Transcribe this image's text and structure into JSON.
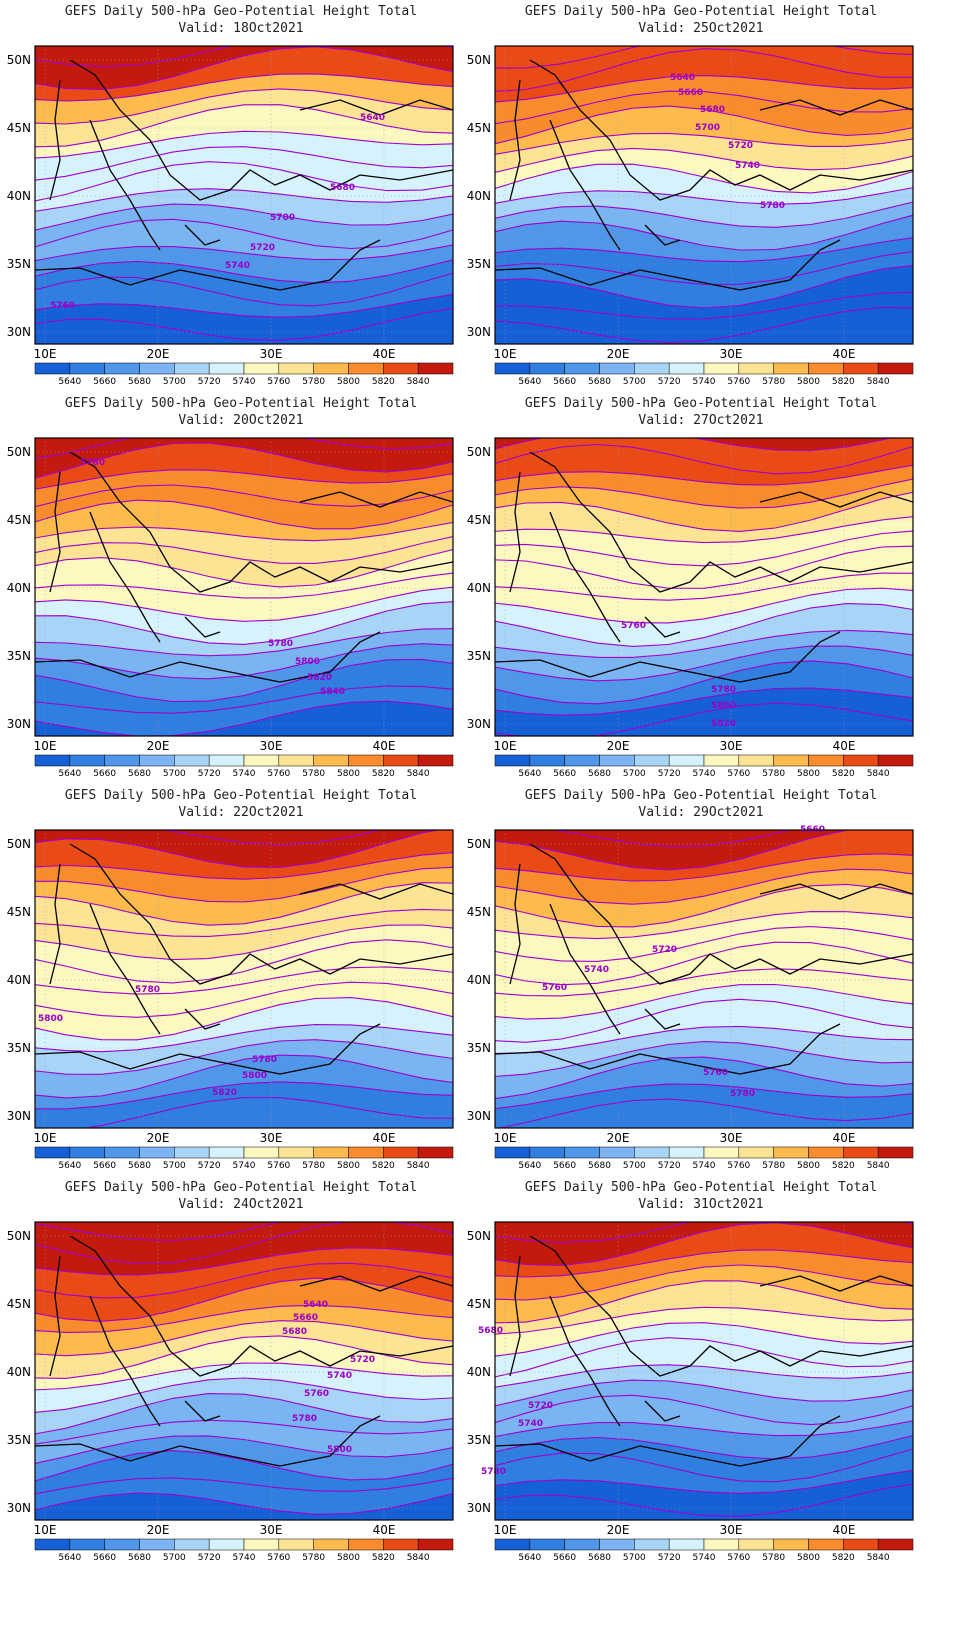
{
  "colorbar": {
    "levels": [
      "5640",
      "5660",
      "5680",
      "5700",
      "5720",
      "5740",
      "5760",
      "5780",
      "5800",
      "5820",
      "5840"
    ],
    "colors": [
      "#1560d6",
      "#2f7ee0",
      "#5097ea",
      "#7ab4f2",
      "#a7d4f7",
      "#d6f2fc",
      "#fdf7c0",
      "#fde494",
      "#fdbb4e",
      "#f88c2c",
      "#ea4a16",
      "#c41a0e"
    ]
  },
  "axes": {
    "lat_labels": [
      "50N",
      "45N",
      "40N",
      "35N",
      "30N"
    ],
    "lon_labels": [
      "10E",
      "20E",
      "30E",
      "40E"
    ]
  },
  "panels": [
    {
      "title": "GEFS Daily 500-hPa Geo-Potential Height Total",
      "valid": "Valid: 18Oct2021",
      "contour_labels": [
        "5640",
        "5680",
        "5700",
        "5720",
        "5740",
        "5760"
      ],
      "bands": [
        11,
        11,
        10,
        8,
        7,
        6,
        5,
        5,
        5,
        4,
        3,
        3,
        2,
        1,
        1,
        0,
        0
      ]
    },
    {
      "title": "GEFS Daily 500-hPa Geo-Potential Height Total",
      "valid": "Valid: 25Oct2021",
      "contour_labels": [
        "5640",
        "5660",
        "5680",
        "5700",
        "5720",
        "5740",
        "5780"
      ],
      "bands": [
        10,
        10,
        10,
        9,
        9,
        8,
        7,
        6,
        5,
        4,
        3,
        2,
        1,
        1,
        0,
        0,
        0
      ]
    },
    {
      "title": "GEFS Daily 500-hPa Geo-Potential Height Total",
      "valid": "Valid: 20Oct2021",
      "contour_labels": [
        "5780",
        "5780",
        "5800",
        "5820",
        "5840"
      ],
      "bands": [
        11,
        11,
        10,
        9,
        9,
        8,
        7,
        7,
        6,
        6,
        5,
        4,
        3,
        2,
        1,
        1,
        0
      ]
    },
    {
      "title": "GEFS Daily 500-hPa Geo-Potential Height Total",
      "valid": "Valid: 27Oct2021",
      "contour_labels": [
        "5760",
        "5780",
        "5800",
        "5820"
      ],
      "bands": [
        11,
        10,
        10,
        9,
        8,
        7,
        6,
        6,
        6,
        6,
        5,
        4,
        3,
        2,
        1,
        0,
        0
      ]
    },
    {
      "title": "GEFS Daily 500-hPa Geo-Potential Height Total",
      "valid": "Valid: 22Oct2021",
      "contour_labels": [
        "5780",
        "5800",
        "5780",
        "5800",
        "5820"
      ],
      "bands": [
        11,
        11,
        10,
        9,
        8,
        7,
        7,
        6,
        6,
        6,
        6,
        5,
        4,
        3,
        2,
        1,
        1
      ]
    },
    {
      "title": "GEFS Daily 500-hPa Geo-Potential Height Total",
      "valid": "Valid: 29Oct2021",
      "contour_labels": [
        "5660",
        "5720",
        "5740",
        "5760",
        "5760",
        "5780"
      ],
      "bands": [
        11,
        11,
        10,
        9,
        8,
        7,
        6,
        6,
        6,
        6,
        5,
        5,
        4,
        3,
        2,
        1,
        1
      ]
    },
    {
      "title": "GEFS Daily 500-hPa Geo-Potential Height Total",
      "valid": "Valid: 24Oct2021",
      "contour_labels": [
        "5640",
        "5660",
        "5680",
        "5720",
        "5740",
        "5760",
        "5780",
        "5800"
      ],
      "bands": [
        11,
        11,
        11,
        10,
        10,
        9,
        8,
        7,
        6,
        5,
        4,
        3,
        3,
        2,
        1,
        1,
        0
      ]
    },
    {
      "title": "GEFS Daily 500-hPa Geo-Potential Height Total",
      "valid": "Valid: 31Oct2021",
      "contour_labels": [
        "5680",
        "5720",
        "5740",
        "5780"
      ],
      "bands": [
        11,
        11,
        10,
        9,
        8,
        7,
        6,
        5,
        5,
        4,
        3,
        3,
        2,
        1,
        1,
        0,
        0
      ]
    }
  ]
}
